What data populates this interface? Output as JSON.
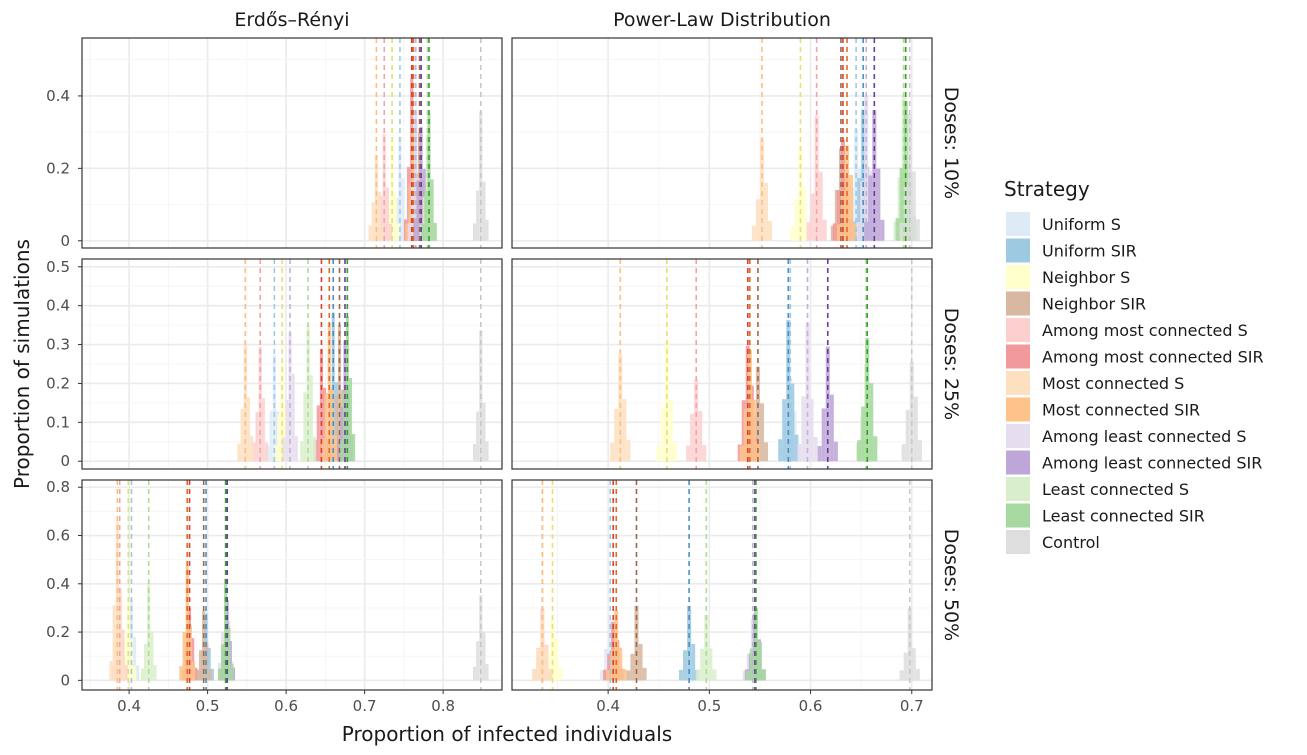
{
  "chart_data": {
    "type": "histogram",
    "xlabel": "Proportion of infected individuals",
    "ylabel": "Proportion of simulations",
    "columns": [
      "Erdős–Rényi",
      "Power-Law Distribution"
    ],
    "rows": [
      "Doses: 10%",
      "Doses: 25%",
      "Doses: 50%"
    ],
    "x_axes": [
      {
        "ticks": [
          0.4,
          0.5,
          0.6,
          0.7,
          0.8
        ],
        "xlim": [
          0.34,
          0.875
        ]
      },
      {
        "ticks": [
          0.4,
          0.5,
          0.6,
          0.7
        ],
        "xlim": [
          0.305,
          0.72
        ]
      }
    ],
    "y_axes": [
      {
        "ticks": [
          0.0,
          0.2,
          0.4
        ],
        "ylim": [
          -0.02,
          0.56
        ]
      },
      {
        "ticks": [
          0.0,
          0.1,
          0.2,
          0.3,
          0.4,
          0.5
        ],
        "ylim": [
          -0.02,
          0.52
        ]
      },
      {
        "ticks": [
          0.0,
          0.2,
          0.4,
          0.6,
          0.8
        ],
        "ylim": [
          -0.04,
          0.83
        ]
      }
    ],
    "grid": true,
    "bin_width": 0.005,
    "legend": {
      "title": "Strategy",
      "position": "right",
      "entries": [
        {
          "name": "Uniform S",
          "color": "#deebf7"
        },
        {
          "name": "Uniform SIR",
          "color": "#9ecae1"
        },
        {
          "name": "Neighbor S",
          "color": "#ffffcc"
        },
        {
          "name": "Neighbor SIR",
          "color": "#d8b8a0"
        },
        {
          "name": "Among most connected S",
          "color": "#fdd0d0"
        },
        {
          "name": "Among most connected SIR",
          "color": "#f1999b"
        },
        {
          "name": "Most connected S",
          "color": "#fde0c0"
        },
        {
          "name": "Most connected SIR",
          "color": "#fdc38a"
        },
        {
          "name": "Among least connected S",
          "color": "#e6ddee"
        },
        {
          "name": "Among least connected SIR",
          "color": "#bea6d8"
        },
        {
          "name": "Least connected S",
          "color": "#d9efcc"
        },
        {
          "name": "Least connected SIR",
          "color": "#a6d8a0"
        },
        {
          "name": "Control",
          "color": "#dedede"
        }
      ]
    },
    "mean_line_colors": [
      "#9ecae1",
      "#4a90c2",
      "#e8e070",
      "#a0684a",
      "#f4a4a8",
      "#d94030",
      "#fdbf80",
      "#e36a20",
      "#c4b0dc",
      "#6a3d9a",
      "#b2dc96",
      "#33a02c",
      "#c8c8c8"
    ],
    "panels": [
      {
        "row": 0,
        "col": 0,
        "means": [
          0.745,
          0.765,
          0.735,
          0.77,
          0.725,
          0.76,
          0.715,
          0.762,
          0.765,
          0.772,
          0.78,
          0.782,
          0.848
        ],
        "peaks": [
          0.3,
          0.32,
          0.28,
          0.3,
          0.3,
          0.44,
          0.28,
          0.34,
          0.36,
          0.38,
          0.3,
          0.34,
          0.37
        ]
      },
      {
        "row": 0,
        "col": 1,
        "means": [
          0.645,
          0.652,
          0.59,
          0.63,
          0.606,
          0.632,
          0.552,
          0.636,
          0.655,
          0.663,
          0.692,
          0.694,
          0.698
        ],
        "peaks": [
          0.36,
          0.38,
          0.28,
          0.3,
          0.36,
          0.32,
          0.3,
          0.32,
          0.4,
          0.4,
          0.4,
          0.44,
          0.36
        ]
      },
      {
        "row": 1,
        "col": 0,
        "means": [
          0.585,
          0.66,
          0.595,
          0.668,
          0.567,
          0.645,
          0.548,
          0.655,
          0.605,
          0.675,
          0.628,
          0.678,
          0.848
        ],
        "peaks": [
          0.28,
          0.42,
          0.3,
          0.36,
          0.32,
          0.36,
          0.36,
          0.4,
          0.4,
          0.36,
          0.4,
          0.4,
          0.34
        ]
      },
      {
        "row": 1,
        "col": 1,
        "means": [
          0.58,
          0.578,
          0.458,
          0.548,
          0.487,
          0.538,
          0.412,
          0.54,
          0.597,
          0.617,
          0.655,
          0.656,
          0.7
        ],
        "peaks": [
          0.24,
          0.4,
          0.3,
          0.3,
          0.26,
          0.34,
          0.3,
          0.3,
          0.36,
          0.3,
          0.3,
          0.36,
          0.3
        ]
      },
      {
        "row": 2,
        "col": 0,
        "means": [
          0.403,
          0.498,
          0.399,
          0.495,
          0.388,
          0.477,
          0.385,
          0.474,
          0.523,
          0.525,
          0.425,
          0.523,
          0.848
        ],
        "peaks": [
          0.4,
          0.3,
          0.38,
          0.3,
          0.4,
          0.32,
          0.66,
          0.46,
          0.46,
          0.34,
          0.4,
          0.4,
          0.36
        ]
      },
      {
        "row": 2,
        "col": 1,
        "means": [
          0.402,
          0.48,
          0.345,
          0.428,
          0.335,
          0.405,
          0.335,
          0.408,
          0.543,
          0.545,
          0.497,
          0.546,
          0.698
        ]
      }
    ]
  }
}
